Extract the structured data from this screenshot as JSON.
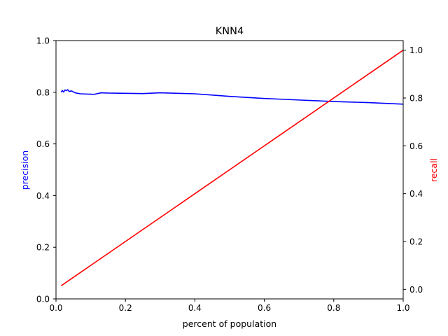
{
  "chart_data": {
    "type": "line",
    "title": "KNN4",
    "xlabel": "percent of population",
    "ylabel": "precision",
    "ylabel_right": "recall",
    "xlim": [
      0.0,
      1.0
    ],
    "ylim": [
      0.0,
      1.0
    ],
    "ylim_right": [
      -0.04,
      1.04
    ],
    "x_ticks": [
      "0.0",
      "0.2",
      "0.4",
      "0.6",
      "0.8",
      "1.0"
    ],
    "y_ticks": [
      "0.0",
      "0.2",
      "0.4",
      "0.6",
      "0.8",
      "1.0"
    ],
    "y_right_ticks": [
      "0.0",
      "0.2",
      "0.4",
      "0.6",
      "0.8",
      "1.0"
    ],
    "grid": false,
    "colors": {
      "precision": "#0000ff",
      "recall": "#ff0000",
      "axes": "#000000"
    },
    "series": [
      {
        "axis": "left",
        "color": "#0000ff",
        "x": [
          0.015,
          0.018,
          0.022,
          0.026,
          0.03,
          0.034,
          0.038,
          0.045,
          0.055,
          0.07,
          0.09,
          0.11,
          0.13,
          0.15,
          0.2,
          0.25,
          0.3,
          0.35,
          0.4,
          0.45,
          0.5,
          0.55,
          0.6,
          0.65,
          0.7,
          0.75,
          0.8,
          0.85,
          0.9,
          0.95,
          1.0
        ],
        "y": [
          0.8,
          0.807,
          0.801,
          0.809,
          0.806,
          0.81,
          0.803,
          0.805,
          0.798,
          0.794,
          0.793,
          0.792,
          0.798,
          0.797,
          0.796,
          0.795,
          0.798,
          0.796,
          0.794,
          0.789,
          0.784,
          0.78,
          0.776,
          0.773,
          0.77,
          0.767,
          0.764,
          0.762,
          0.76,
          0.757,
          0.754
        ]
      },
      {
        "axis": "right",
        "color": "#ff0000",
        "x": [
          0.015,
          1.0
        ],
        "y": [
          0.015,
          1.0
        ]
      }
    ]
  }
}
